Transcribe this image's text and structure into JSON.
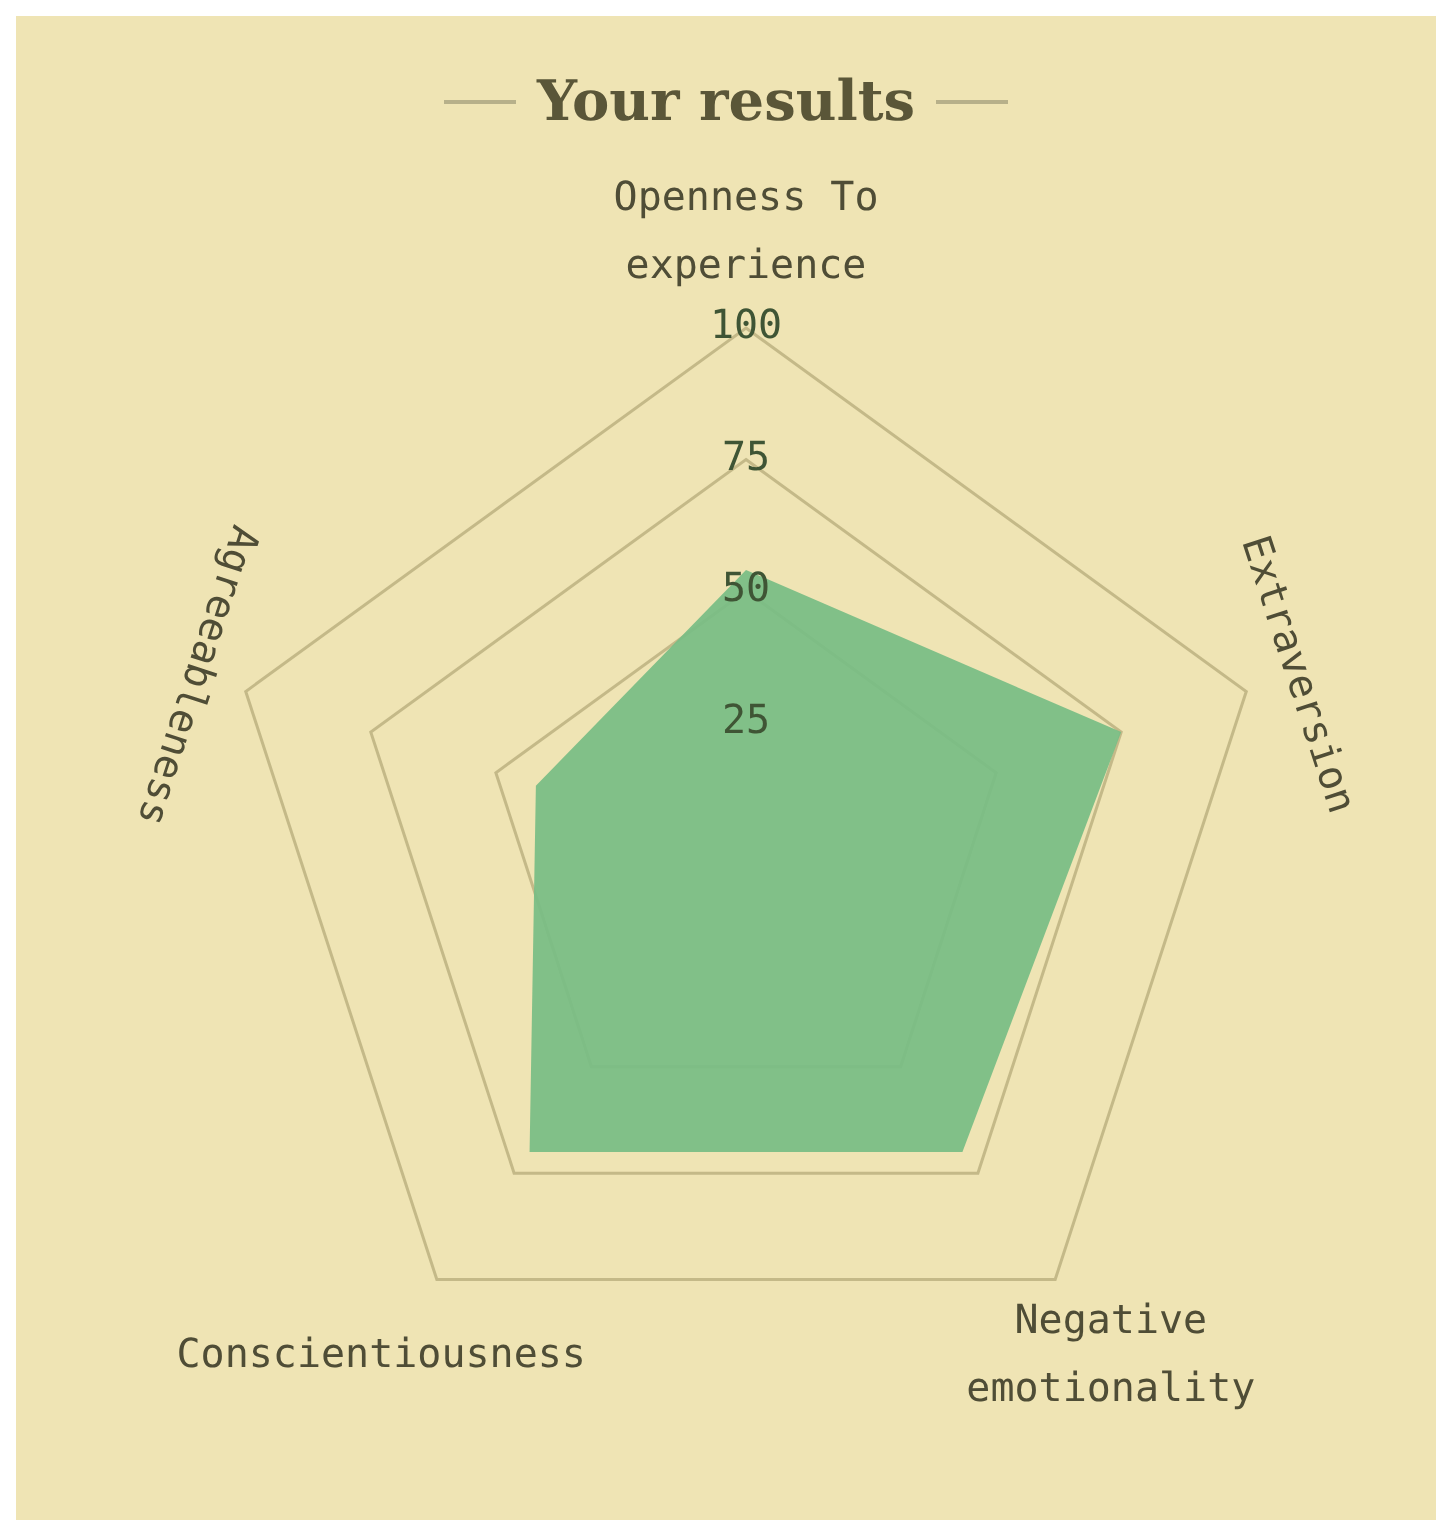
{
  "chart_data": {
    "type": "radar",
    "title": "Your results",
    "categories": [
      "Openness To experience",
      "Extraversion",
      "Negative emotionality",
      "Conscientiousness",
      "Agreeableness"
    ],
    "series": [
      {
        "color": "#77bd84",
        "values": [
          54,
          75,
          70,
          70,
          42
        ]
      }
    ],
    "ylim": [
      0,
      100
    ],
    "yticks": [
      25,
      50,
      75,
      100
    ],
    "grid": true,
    "legend": false,
    "marker": "none"
  }
}
